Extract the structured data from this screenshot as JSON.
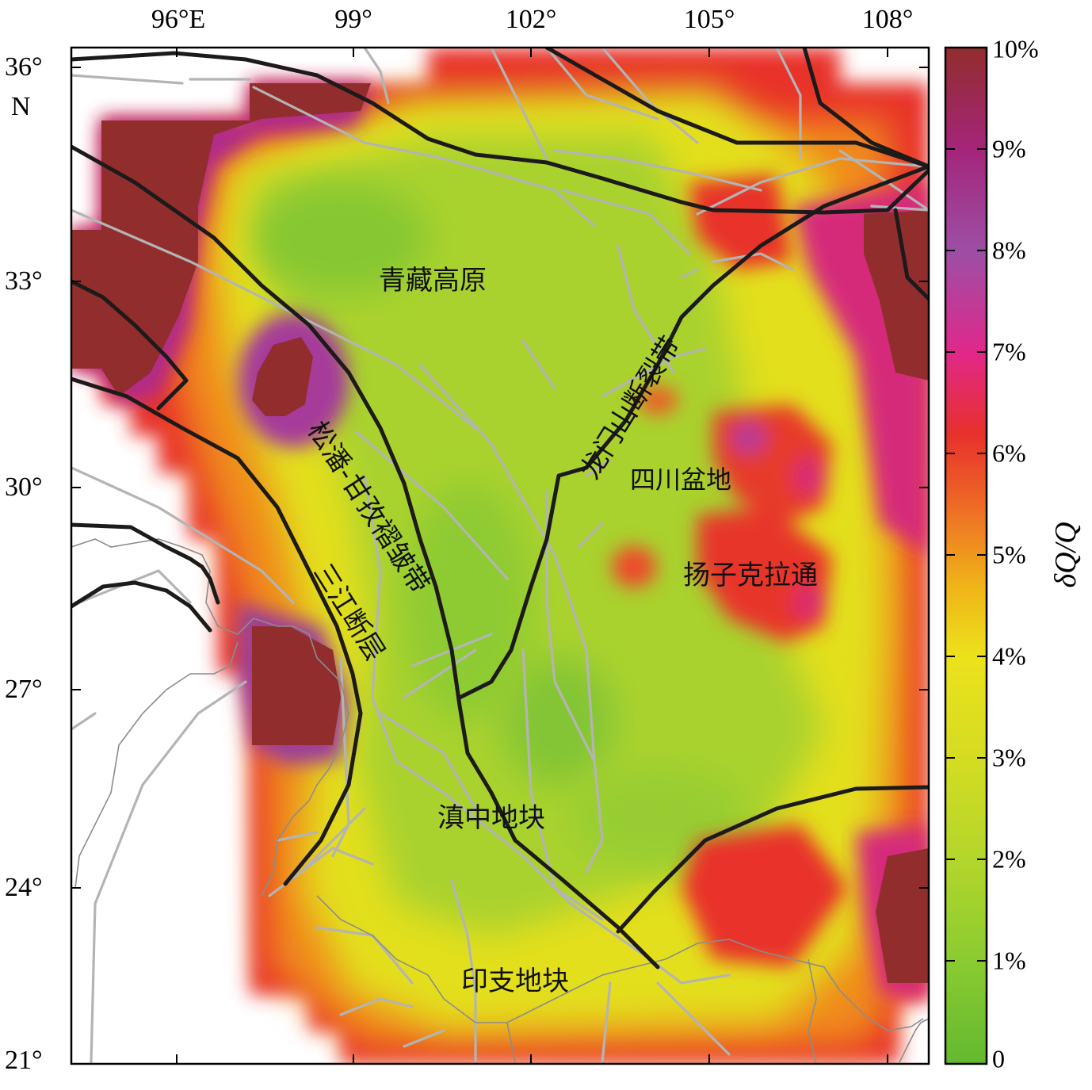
{
  "map": {
    "lon_ticks": [
      "96°E",
      "99°",
      "102°",
      "105°",
      "108°"
    ],
    "lat_ticks": [
      "36°",
      "33°",
      "30°",
      "27°",
      "24°",
      "21°"
    ],
    "lat_hemisphere": "N"
  },
  "colorbar": {
    "title": "δQ/Q",
    "ticks": [
      "10%",
      "9%",
      "8%",
      "7%",
      "6%",
      "5%",
      "4%",
      "3%",
      "2%",
      "1%",
      "0"
    ],
    "colors": [
      "#922d2d",
      "#a4257a",
      "#9c4fa5",
      "#e0288a",
      "#e8302c",
      "#ef8a1a",
      "#e7db19",
      "#b8d82a",
      "#8acb31",
      "#64b92f"
    ]
  },
  "labels": {
    "qingzang": "青藏高原",
    "songpan": "松潘-甘孜褶皱带",
    "longmenshan": "龙门山断裂带",
    "sichuan": "四川盆地",
    "yangtze": "扬子克拉通",
    "sanjiang": "三江断层",
    "dianzhong": "滇中地块",
    "yinzhi": "印支地块"
  }
}
